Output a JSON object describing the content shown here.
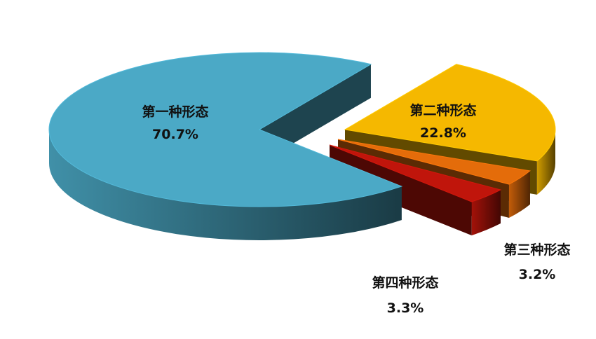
{
  "chart_data": {
    "type": "pie",
    "style": "3d-exploded",
    "title": "",
    "slices": [
      {
        "label": "第二种形态",
        "value": 22.8,
        "value_label": "22.8%",
        "color": "#f5b800"
      },
      {
        "label": "第三种形态",
        "value": 3.2,
        "value_label": "3.2%",
        "color": "#e46c0a"
      },
      {
        "label": "第四种形态",
        "value": 3.3,
        "value_label": "3.3%",
        "color": "#c0150b"
      },
      {
        "label": "第一种形态",
        "value": 70.7,
        "value_label": "70.7%",
        "color": "#4ba9c6"
      }
    ],
    "legend": "none"
  }
}
